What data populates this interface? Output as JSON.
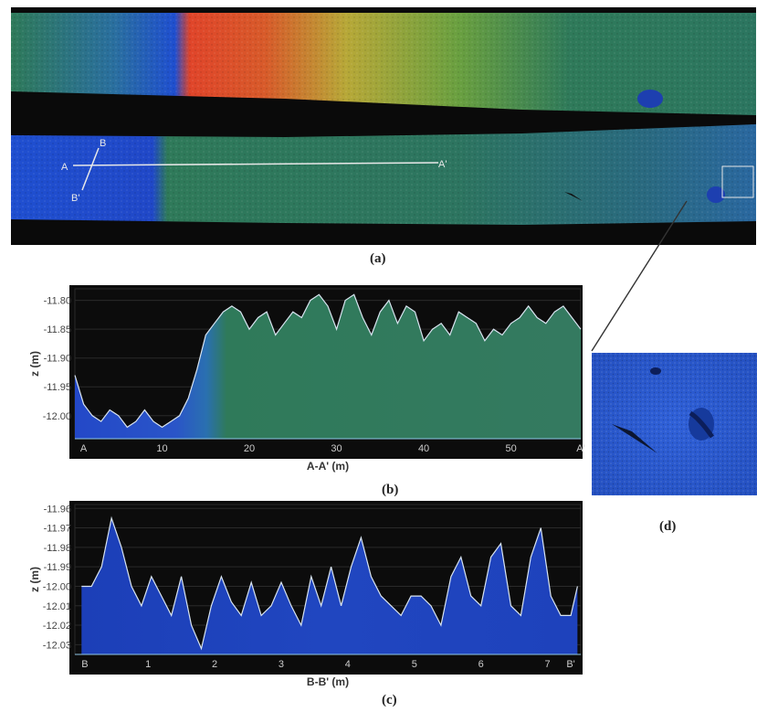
{
  "captions": {
    "a": "(a)",
    "b": "(b)",
    "c": "(c)",
    "d": "(d)"
  },
  "map": {
    "section_line_long": {
      "start_label": "A",
      "end_label": "A'"
    },
    "section_line_short": {
      "start_label": "B",
      "end_label": "B'"
    }
  },
  "colors": {
    "deep": "#1f4fd0",
    "mid": "#2f7a5a",
    "high": "#e0452a",
    "yellow": "#d8c838",
    "profile_bg": "#0c0c0c",
    "profile_frame": "#2a2a2a"
  },
  "chart_data": [
    {
      "id": "b",
      "type": "area",
      "xlabel": "A-A' (m)",
      "ylabel": "z (m)",
      "xlim": [
        0,
        58
      ],
      "ylim": [
        -12.04,
        -11.78
      ],
      "x_ticks": [
        "A",
        "10",
        "20",
        "30",
        "40",
        "50",
        "A'"
      ],
      "x_tick_values": [
        1,
        10,
        20,
        30,
        40,
        50,
        58
      ],
      "y_ticks": [
        "-11.80",
        "-11.85",
        "-11.90",
        "-11.95",
        "-12.00"
      ],
      "y_tick_values": [
        -11.8,
        -11.85,
        -11.9,
        -11.95,
        -12.0
      ],
      "x": [
        0,
        1,
        2,
        3,
        4,
        5,
        6,
        7,
        8,
        9,
        10,
        11,
        12,
        13,
        14,
        15,
        16,
        17,
        18,
        19,
        20,
        21,
        22,
        23,
        24,
        25,
        26,
        27,
        28,
        29,
        30,
        31,
        32,
        33,
        34,
        35,
        36,
        37,
        38,
        39,
        40,
        41,
        42,
        43,
        44,
        45,
        46,
        47,
        48,
        49,
        50,
        51,
        52,
        53,
        54,
        55,
        56,
        57,
        58
      ],
      "y": [
        -11.93,
        -11.98,
        -12.0,
        -12.01,
        -11.99,
        -12.0,
        -12.02,
        -12.01,
        -11.99,
        -12.01,
        -12.02,
        -12.01,
        -12.0,
        -11.97,
        -11.92,
        -11.86,
        -11.84,
        -11.82,
        -11.81,
        -11.82,
        -11.85,
        -11.83,
        -11.82,
        -11.86,
        -11.84,
        -11.82,
        -11.83,
        -11.8,
        -11.79,
        -11.81,
        -11.85,
        -11.8,
        -11.79,
        -11.83,
        -11.86,
        -11.82,
        -11.8,
        -11.84,
        -11.81,
        -11.82,
        -11.87,
        -11.85,
        -11.84,
        -11.86,
        -11.82,
        -11.83,
        -11.84,
        -11.87,
        -11.85,
        -11.86,
        -11.84,
        -11.83,
        -11.81,
        -11.83,
        -11.84,
        -11.82,
        -11.81,
        -11.83,
        -11.85
      ]
    },
    {
      "id": "c",
      "type": "area",
      "xlabel": "B-B' (m)",
      "ylabel": "z (m)",
      "xlim": [
        -0.1,
        7.5
      ],
      "ylim": [
        -12.035,
        -11.958
      ],
      "x_ticks": [
        "B",
        "1",
        "2",
        "3",
        "4",
        "5",
        "6",
        "7",
        "B'"
      ],
      "x_tick_values": [
        0.05,
        1,
        2,
        3,
        4,
        5,
        6,
        7,
        7.35
      ],
      "y_ticks": [
        "-11.96",
        "-11.97",
        "-11.98",
        "-11.99",
        "-12.00",
        "-12.01",
        "-12.02",
        "-12.03"
      ],
      "y_tick_values": [
        -11.96,
        -11.97,
        -11.98,
        -11.99,
        -12.0,
        -12.01,
        -12.02,
        -12.03
      ],
      "x": [
        0.0,
        0.15,
        0.3,
        0.45,
        0.6,
        0.75,
        0.9,
        1.05,
        1.2,
        1.35,
        1.5,
        1.65,
        1.8,
        1.95,
        2.1,
        2.25,
        2.4,
        2.55,
        2.7,
        2.85,
        3.0,
        3.15,
        3.3,
        3.45,
        3.6,
        3.75,
        3.9,
        4.05,
        4.2,
        4.35,
        4.5,
        4.65,
        4.8,
        4.95,
        5.1,
        5.25,
        5.4,
        5.55,
        5.7,
        5.85,
        6.0,
        6.15,
        6.3,
        6.45,
        6.6,
        6.75,
        6.9,
        7.05,
        7.2,
        7.35,
        7.45
      ],
      "y": [
        -12.0,
        -12.0,
        -11.99,
        -11.965,
        -11.98,
        -12.0,
        -12.01,
        -11.995,
        -12.005,
        -12.015,
        -11.995,
        -12.02,
        -12.032,
        -12.01,
        -11.995,
        -12.008,
        -12.015,
        -11.998,
        -12.015,
        -12.01,
        -11.998,
        -12.01,
        -12.02,
        -11.995,
        -12.01,
        -11.99,
        -12.01,
        -11.99,
        -11.975,
        -11.995,
        -12.005,
        -12.01,
        -12.015,
        -12.005,
        -12.005,
        -12.01,
        -12.02,
        -11.995,
        -11.985,
        -12.005,
        -12.01,
        -11.985,
        -11.978,
        -12.01,
        -12.015,
        -11.985,
        -11.97,
        -12.005,
        -12.015,
        -12.015,
        -12.0
      ]
    }
  ]
}
